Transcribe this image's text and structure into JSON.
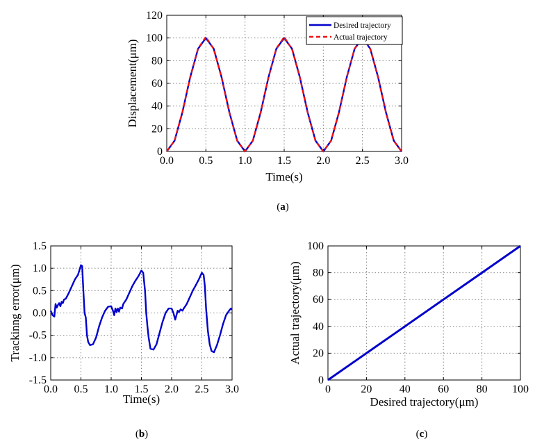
{
  "chart_data": [
    {
      "id": "a",
      "type": "line",
      "caption": "(a)",
      "caption_letter": "a",
      "xlabel": "Time(s)",
      "ylabel": "Displacement(μm)",
      "xlim": [
        0,
        3
      ],
      "ylim": [
        0,
        120
      ],
      "xticks": [
        "0.0",
        "0.5",
        "1.0",
        "1.5",
        "2.0",
        "2.5",
        "3.0"
      ],
      "yticks": [
        "0",
        "20",
        "40",
        "60",
        "80",
        "100",
        "120"
      ],
      "grid": true,
      "legend_position": "top-right",
      "series": [
        {
          "name": "Desired trajectory",
          "color": "#0000cc",
          "style": "solid",
          "x": [
            0,
            0.1,
            0.2,
            0.3,
            0.4,
            0.5,
            0.6,
            0.7,
            0.8,
            0.9,
            1.0,
            1.1,
            1.2,
            1.3,
            1.4,
            1.5,
            1.6,
            1.7,
            1.8,
            1.9,
            2.0,
            2.1,
            2.2,
            2.3,
            2.4,
            2.5,
            2.6,
            2.7,
            2.8,
            2.9,
            3.0
          ],
          "y": [
            0,
            9.5,
            34.5,
            65.5,
            90.5,
            100,
            90.5,
            65.5,
            34.5,
            9.5,
            0,
            9.5,
            34.5,
            65.5,
            90.5,
            100,
            90.5,
            65.5,
            34.5,
            9.5,
            0,
            9.5,
            34.5,
            65.5,
            90.5,
            100,
            90.5,
            65.5,
            34.5,
            9.5,
            0
          ]
        },
        {
          "name": "Actual trajectory",
          "color": "#ee1111",
          "style": "dashed",
          "x": [
            0,
            0.1,
            0.2,
            0.3,
            0.4,
            0.5,
            0.6,
            0.7,
            0.8,
            0.9,
            1.0,
            1.1,
            1.2,
            1.3,
            1.4,
            1.5,
            1.6,
            1.7,
            1.8,
            1.9,
            2.0,
            2.1,
            2.2,
            2.3,
            2.4,
            2.5,
            2.6,
            2.7,
            2.8,
            2.9,
            3.0
          ],
          "y": [
            0,
            9.6,
            34.7,
            65.7,
            90.8,
            101,
            90.2,
            65.0,
            34.0,
            9.2,
            0,
            9.6,
            34.7,
            65.7,
            90.8,
            100.9,
            90.2,
            65.0,
            34.0,
            9.2,
            0,
            9.6,
            34.6,
            65.6,
            90.7,
            100.9,
            90.2,
            65.0,
            34.0,
            9.2,
            0
          ]
        }
      ]
    },
    {
      "id": "b",
      "type": "line",
      "caption": "(b)",
      "caption_letter": "b",
      "xlabel": "Time(s)",
      "ylabel": "Trackinng error(μm)",
      "xlim": [
        0,
        3
      ],
      "ylim": [
        -1.5,
        1.5
      ],
      "xticks": [
        "0.0",
        "0.5",
        "1.0",
        "1.5",
        "2.0",
        "2.5",
        "3.0"
      ],
      "yticks": [
        "-1.5",
        "-1.0",
        "-0.5",
        "0.0",
        "0.5",
        "1.0",
        "1.5"
      ],
      "grid": true,
      "series": [
        {
          "color": "#0000cc",
          "style": "solid",
          "x": [
            0,
            0.03,
            0.06,
            0.08,
            0.1,
            0.12,
            0.14,
            0.16,
            0.18,
            0.2,
            0.22,
            0.25,
            0.3,
            0.35,
            0.4,
            0.45,
            0.48,
            0.5,
            0.52,
            0.54,
            0.56,
            0.58,
            0.6,
            0.62,
            0.65,
            0.7,
            0.75,
            0.8,
            0.85,
            0.9,
            0.95,
            1.0,
            1.03,
            1.05,
            1.07,
            1.09,
            1.11,
            1.13,
            1.15,
            1.18,
            1.2,
            1.25,
            1.3,
            1.35,
            1.4,
            1.45,
            1.5,
            1.53,
            1.56,
            1.58,
            1.6,
            1.62,
            1.65,
            1.7,
            1.75,
            1.8,
            1.85,
            1.9,
            1.95,
            2.0,
            2.03,
            2.06,
            2.08,
            2.1,
            2.12,
            2.15,
            2.18,
            2.2,
            2.25,
            2.3,
            2.35,
            2.4,
            2.45,
            2.5,
            2.53,
            2.55,
            2.57,
            2.6,
            2.63,
            2.66,
            2.7,
            2.75,
            2.8,
            2.85,
            2.9,
            2.95,
            2.98,
            3.0
          ],
          "y": [
            0.05,
            -0.05,
            -0.08,
            0.2,
            0.12,
            0.18,
            0.22,
            0.15,
            0.25,
            0.22,
            0.3,
            0.32,
            0.45,
            0.6,
            0.75,
            0.85,
            0.98,
            1.07,
            1.05,
            0.5,
            0.0,
            -0.1,
            -0.5,
            -0.65,
            -0.72,
            -0.7,
            -0.55,
            -0.3,
            -0.1,
            0.05,
            0.14,
            0.15,
            0.05,
            -0.05,
            0.1,
            0.02,
            0.1,
            0.03,
            0.12,
            0.1,
            0.2,
            0.3,
            0.45,
            0.6,
            0.72,
            0.82,
            0.95,
            0.9,
            0.5,
            0.0,
            -0.3,
            -0.55,
            -0.8,
            -0.82,
            -0.7,
            -0.45,
            -0.2,
            0.0,
            0.1,
            0.1,
            0.0,
            -0.15,
            -0.05,
            0.05,
            0.02,
            0.08,
            0.05,
            0.1,
            0.2,
            0.35,
            0.5,
            0.62,
            0.75,
            0.9,
            0.85,
            0.6,
            0.1,
            -0.4,
            -0.7,
            -0.85,
            -0.88,
            -0.72,
            -0.5,
            -0.25,
            -0.05,
            0.05,
            0.1,
            0.08
          ]
        }
      ]
    },
    {
      "id": "c",
      "type": "line",
      "caption": "(c)",
      "caption_letter": "c",
      "xlabel": "Desired trajectory(μm)",
      "ylabel": "Actual trajectory(μm)",
      "xlim": [
        0,
        100
      ],
      "ylim": [
        0,
        100
      ],
      "xticks": [
        "0",
        "20",
        "40",
        "60",
        "80",
        "100"
      ],
      "yticks": [
        "0",
        "20",
        "40",
        "60",
        "80",
        "100"
      ],
      "grid": true,
      "series": [
        {
          "color": "#0000cc",
          "style": "solid",
          "x": [
            0,
            20,
            40,
            60,
            80,
            100
          ],
          "y": [
            0,
            20,
            40,
            60,
            80,
            100
          ]
        }
      ]
    }
  ]
}
